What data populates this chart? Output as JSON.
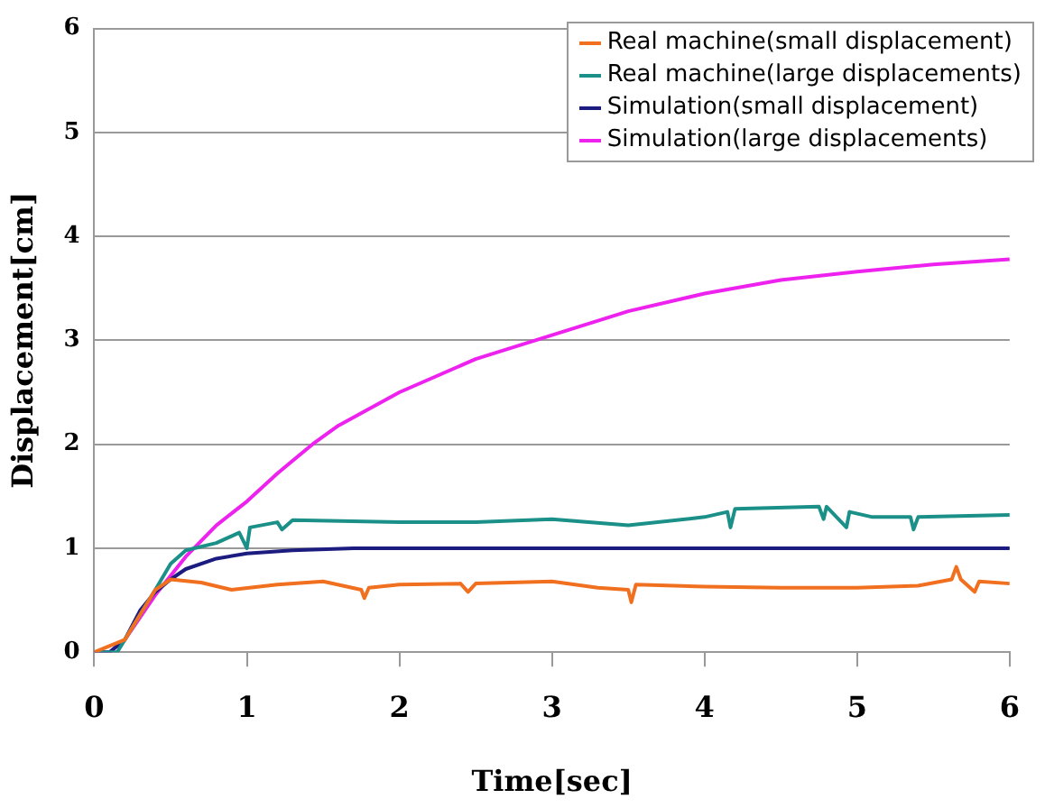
{
  "chart_data": {
    "type": "line",
    "xlabel": "Time[sec]",
    "ylabel": "Displacement[cm]",
    "xlim": [
      0,
      6
    ],
    "xticks": [
      0,
      1,
      2,
      3,
      4,
      5,
      6
    ],
    "ylim": [
      0,
      6
    ],
    "yticks": [
      0,
      1,
      2,
      3,
      4,
      5,
      6
    ],
    "grid": "y",
    "legend": "top right",
    "marker": "none",
    "line_style": "solid",
    "series": [
      {
        "name": "Real machine(small displacement)",
        "color": "#f07020",
        "x": [
          0,
          0.2,
          0.4,
          0.5,
          0.7,
          0.9,
          1.2,
          1.5,
          1.75,
          1.77,
          1.8,
          2,
          2.4,
          2.45,
          2.5,
          3,
          3.3,
          3.5,
          3.52,
          3.55,
          4,
          4.5,
          5,
          5.4,
          5.62,
          5.65,
          5.68,
          5.77,
          5.8,
          6
        ],
        "values": [
          0,
          0.12,
          0.6,
          0.7,
          0.67,
          0.6,
          0.65,
          0.68,
          0.6,
          0.52,
          0.62,
          0.65,
          0.66,
          0.58,
          0.66,
          0.68,
          0.62,
          0.6,
          0.48,
          0.65,
          0.63,
          0.62,
          0.62,
          0.64,
          0.7,
          0.82,
          0.7,
          0.58,
          0.68,
          0.66
        ]
      },
      {
        "name": "Real machine(large displacements)",
        "color": "#1a9088",
        "x": [
          0,
          0.15,
          0.2,
          0.4,
          0.5,
          0.6,
          0.8,
          0.95,
          1,
          1.02,
          1.2,
          1.23,
          1.3,
          2,
          2.5,
          3,
          3.5,
          4,
          4.15,
          4.17,
          4.2,
          4.75,
          4.78,
          4.8,
          4.93,
          4.95,
          5.1,
          5.35,
          5.37,
          5.4,
          6
        ],
        "values": [
          0,
          0,
          0.12,
          0.6,
          0.85,
          0.98,
          1.05,
          1.15,
          1,
          1.2,
          1.25,
          1.18,
          1.27,
          1.25,
          1.25,
          1.28,
          1.22,
          1.3,
          1.35,
          1.2,
          1.38,
          1.4,
          1.28,
          1.4,
          1.2,
          1.35,
          1.3,
          1.3,
          1.18,
          1.3,
          1.32
        ]
      },
      {
        "name": "Simulation(small displacement)",
        "color": "#1c1c80",
        "x": [
          0,
          0.1,
          0.2,
          0.3,
          0.4,
          0.5,
          0.6,
          0.8,
          1,
          1.3,
          1.7,
          6
        ],
        "values": [
          0,
          0,
          0.12,
          0.4,
          0.58,
          0.7,
          0.8,
          0.9,
          0.95,
          0.98,
          1,
          1
        ]
      },
      {
        "name": "Simulation(large displacements)",
        "color": "#ee22ee",
        "x": [
          0,
          0.1,
          0.2,
          0.4,
          0.6,
          0.8,
          1,
          1.2,
          1.43,
          1.6,
          2,
          2.5,
          3,
          3.5,
          4,
          4.5,
          5,
          5.5,
          6
        ],
        "values": [
          0,
          0,
          0.12,
          0.55,
          0.92,
          1.22,
          1.45,
          1.72,
          2,
          2.18,
          2.5,
          2.82,
          3.05,
          3.28,
          3.45,
          3.58,
          3.66,
          3.73,
          3.78
        ]
      }
    ]
  }
}
